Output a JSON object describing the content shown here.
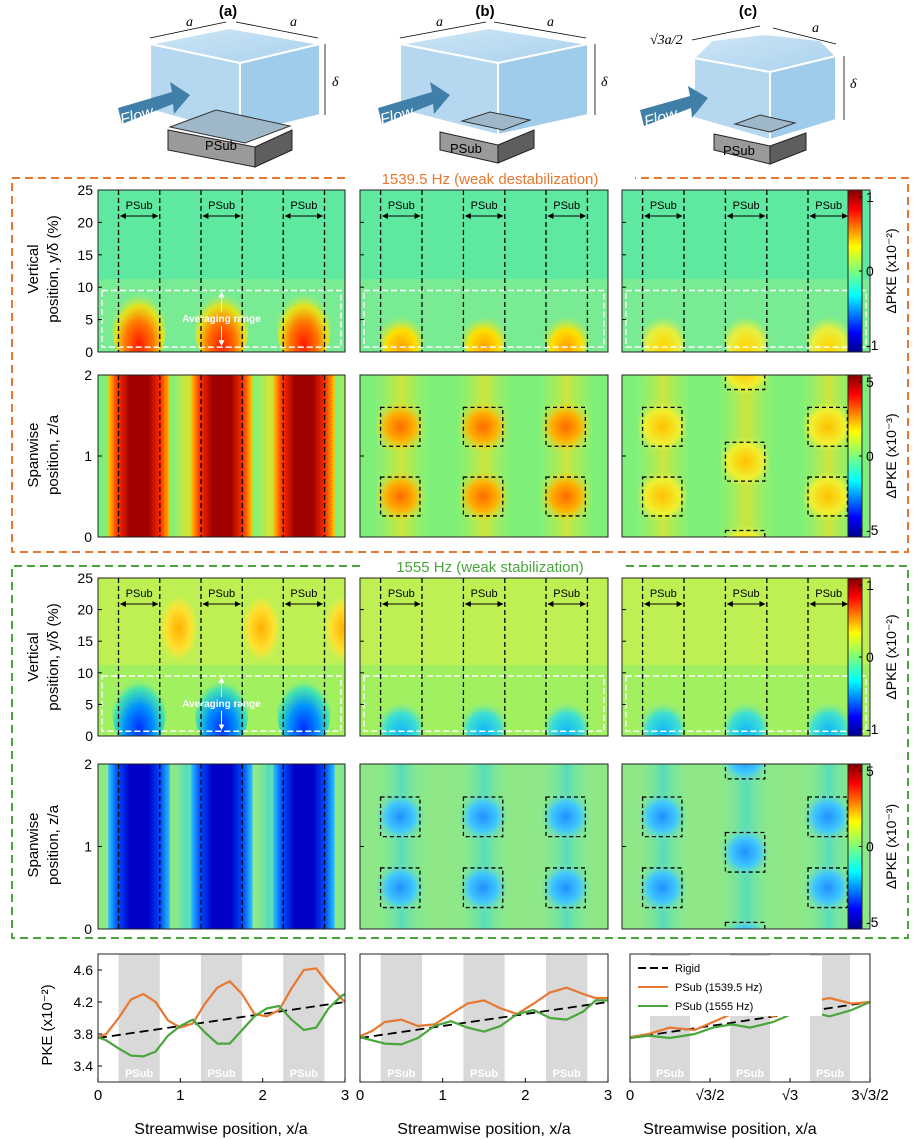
{
  "panel_labels": [
    "(a)",
    "(b)",
    "(c)"
  ],
  "schematics": {
    "flow_label": "Flow",
    "psub_label": "PSub",
    "dim_a": "a",
    "dim_delta": "δ",
    "dim_sqrt3a2": "√3a/2"
  },
  "sections": {
    "destab_title": "1539.5 Hz (weak destabilization)",
    "stab_title": "1555 Hz (weak stabilization)",
    "destab_color": "#e8782f",
    "stab_color": "#4aa63c"
  },
  "axes": {
    "vertical_label_1": "Vertical",
    "vertical_label_2": "position, y/δ (%)",
    "spanwise_label_1": "Spanwise",
    "spanwise_label_2": "position, z/a",
    "pke_label": "PKE (x10⁻²)",
    "x_label": "Streamwise position, x/a",
    "vertical_ticks": [
      "25",
      "20",
      "15",
      "10",
      "5",
      "0"
    ],
    "spanwise_ticks": [
      "2",
      "1",
      "0"
    ],
    "pke_ticks": [
      "4.6",
      "4.2",
      "3.8",
      "3.4"
    ],
    "x_ticks_ab": [
      "0",
      "1",
      "2",
      "3"
    ],
    "x_ticks_c": [
      "0",
      "√3/2",
      "√3",
      "3√3/2"
    ],
    "psub_tag": "PSub",
    "averaging_range": "Averaging range"
  },
  "colorbars": {
    "label": "ΔPKE",
    "vertical_scale": "(x10⁻²)",
    "spanwise_scale": "(x10⁻³)",
    "vertical_ticks": [
      "1",
      "0",
      "-1"
    ],
    "spanwise_ticks": [
      "5",
      "0",
      "-5"
    ]
  },
  "chart_data": [
    {
      "type": "line",
      "panel": "(a)",
      "xlabel": "Streamwise position, x/a",
      "ylabel": "PKE (x10⁻²)",
      "xlim": [
        0,
        3
      ],
      "ylim": [
        3.2,
        4.8
      ],
      "legend": "top-left",
      "psub_bands": [
        [
          0.25,
          0.75
        ],
        [
          1.25,
          1.75
        ],
        [
          2.25,
          2.75
        ]
      ],
      "series": [
        {
          "name": "Rigid",
          "style": "dashed",
          "color": "#000000",
          "x": [
            0,
            3
          ],
          "y": [
            3.75,
            4.2
          ]
        },
        {
          "name": "PSub (1539.5 Hz)",
          "color": "#e8782f",
          "x": [
            0,
            0.1,
            0.25,
            0.4,
            0.55,
            0.7,
            0.85,
            1.0,
            1.15,
            1.3,
            1.45,
            1.6,
            1.75,
            1.9,
            2.05,
            2.2,
            2.35,
            2.5,
            2.65,
            2.8,
            2.95,
            3.0
          ],
          "y": [
            3.76,
            3.8,
            4.0,
            4.23,
            4.3,
            4.2,
            3.97,
            3.88,
            3.93,
            4.18,
            4.38,
            4.46,
            4.3,
            4.05,
            4.02,
            4.1,
            4.37,
            4.6,
            4.62,
            4.42,
            4.25,
            4.2
          ]
        },
        {
          "name": "PSub (1555 Hz)",
          "color": "#4aa63c",
          "x": [
            0,
            0.1,
            0.25,
            0.4,
            0.55,
            0.7,
            0.85,
            1.0,
            1.15,
            1.3,
            1.45,
            1.6,
            1.75,
            1.9,
            2.05,
            2.2,
            2.35,
            2.5,
            2.65,
            2.8,
            2.95,
            3.0
          ],
          "y": [
            3.76,
            3.72,
            3.62,
            3.53,
            3.52,
            3.58,
            3.78,
            3.9,
            3.98,
            3.82,
            3.68,
            3.68,
            3.85,
            4.02,
            4.12,
            4.15,
            3.98,
            3.85,
            3.88,
            4.12,
            4.27,
            4.3
          ]
        }
      ]
    },
    {
      "type": "line",
      "panel": "(b)",
      "xlabel": "Streamwise position, x/a",
      "xlim": [
        0,
        3
      ],
      "ylim": [
        3.2,
        4.8
      ],
      "psub_bands": [
        [
          0.25,
          0.75
        ],
        [
          1.25,
          1.75
        ],
        [
          2.25,
          2.75
        ]
      ],
      "series": [
        {
          "name": "Rigid",
          "style": "dashed",
          "color": "#000000",
          "x": [
            0,
            3
          ],
          "y": [
            3.75,
            4.2
          ]
        },
        {
          "name": "PSub (1539.5 Hz)",
          "color": "#e8782f",
          "x": [
            0,
            0.15,
            0.3,
            0.5,
            0.7,
            0.9,
            1.1,
            1.3,
            1.5,
            1.7,
            1.9,
            2.1,
            2.3,
            2.5,
            2.7,
            2.85,
            3.0
          ],
          "y": [
            3.77,
            3.84,
            3.95,
            3.98,
            3.9,
            3.92,
            4.05,
            4.18,
            4.22,
            4.12,
            4.05,
            4.18,
            4.32,
            4.38,
            4.3,
            4.25,
            4.25
          ]
        },
        {
          "name": "PSub (1555 Hz)",
          "color": "#4aa63c",
          "x": [
            0,
            0.15,
            0.3,
            0.5,
            0.7,
            0.9,
            1.1,
            1.3,
            1.5,
            1.7,
            1.9,
            2.1,
            2.3,
            2.5,
            2.7,
            2.85,
            3.0
          ],
          "y": [
            3.76,
            3.72,
            3.68,
            3.67,
            3.75,
            3.9,
            3.96,
            3.88,
            3.83,
            3.9,
            4.05,
            4.1,
            4.0,
            3.98,
            4.08,
            4.22,
            4.22
          ]
        }
      ]
    },
    {
      "type": "line",
      "panel": "(c)",
      "xlabel": "Streamwise position, x/a",
      "xlim": [
        0,
        2.598
      ],
      "ylim": [
        3.2,
        4.8
      ],
      "psub_bands": [
        [
          0.217,
          0.65
        ],
        [
          1.083,
          1.516
        ],
        [
          1.949,
          2.382
        ]
      ],
      "series": [
        {
          "name": "Rigid",
          "style": "dashed",
          "color": "#000000",
          "x": [
            0,
            2.598
          ],
          "y": [
            3.75,
            4.2
          ]
        },
        {
          "name": "PSub (1539.5 Hz)",
          "color": "#e8782f",
          "x": [
            0,
            0.2,
            0.43,
            0.7,
            0.9,
            1.1,
            1.3,
            1.55,
            1.75,
            1.95,
            2.16,
            2.4,
            2.598
          ],
          "y": [
            3.76,
            3.8,
            3.88,
            3.85,
            3.95,
            4.05,
            4.1,
            4.02,
            4.1,
            4.2,
            4.25,
            4.18,
            4.2
          ]
        },
        {
          "name": "PSub (1555 Hz)",
          "color": "#4aa63c",
          "x": [
            0,
            0.2,
            0.43,
            0.7,
            0.9,
            1.1,
            1.3,
            1.55,
            1.75,
            1.95,
            2.16,
            2.4,
            2.598
          ],
          "y": [
            3.75,
            3.78,
            3.75,
            3.8,
            3.88,
            3.92,
            3.88,
            3.95,
            4.05,
            4.08,
            4.02,
            4.1,
            4.2
          ]
        }
      ]
    }
  ]
}
